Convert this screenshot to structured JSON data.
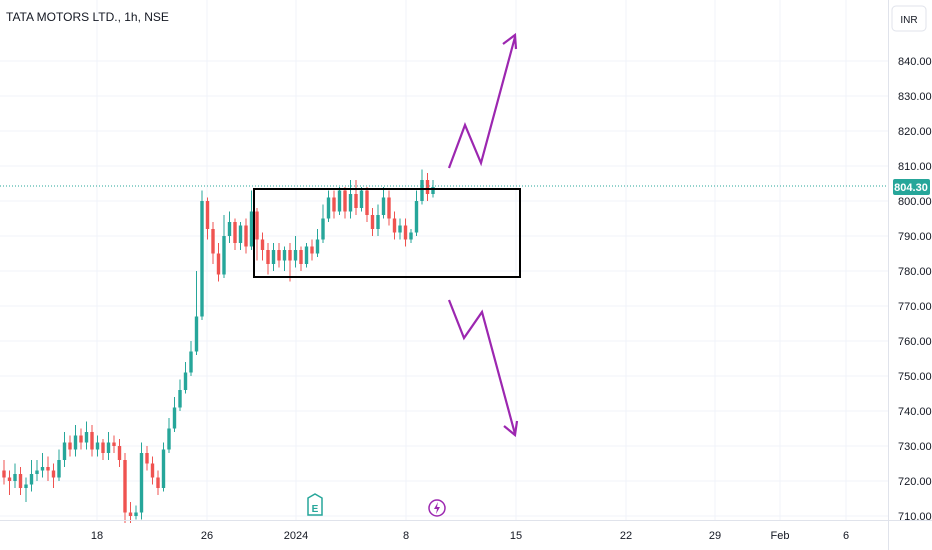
{
  "header": {
    "title": "TATA MOTORS LTD., 1h, NSE"
  },
  "currency": {
    "label": "INR"
  },
  "colors": {
    "up": "#26a69a",
    "down": "#ef5350",
    "annotation": "#9c27b0",
    "box": "#000000",
    "badge": "#26a69a"
  },
  "icons": {
    "earnings": "earnings-icon",
    "dividend": "lightning-icon"
  },
  "markers": {
    "earnings_label": "E"
  },
  "chart_data": {
    "type": "candlestick",
    "title": "TATA MOTORS LTD., 1h, NSE",
    "ylim": [
      710,
      850
    ],
    "y_ticks": [
      "840.00",
      "830.00",
      "820.00",
      "810.00",
      "800.00",
      "790.00",
      "780.00",
      "770.00",
      "760.00",
      "750.00",
      "740.00",
      "730.00",
      "720.00",
      "710.00"
    ],
    "x_ticks": [
      "18",
      "26",
      "2024",
      "8",
      "15",
      "22",
      "29",
      "Feb",
      "6"
    ],
    "last_price": "804.30",
    "candles": [
      [
        723,
        721,
        726,
        719
      ],
      [
        721,
        720,
        723,
        716
      ],
      [
        720,
        722,
        725,
        718
      ],
      [
        722,
        718,
        724,
        716
      ],
      [
        718,
        719,
        721,
        714
      ],
      [
        719,
        722,
        726,
        717
      ],
      [
        722,
        723,
        726,
        720
      ],
      [
        723,
        724,
        728,
        721
      ],
      [
        724,
        723,
        727,
        720
      ],
      [
        723,
        721,
        725,
        718
      ],
      [
        721,
        726,
        729,
        720
      ],
      [
        726,
        731,
        734,
        724
      ],
      [
        731,
        729,
        733,
        727
      ],
      [
        729,
        733,
        736,
        727
      ],
      [
        733,
        731,
        735,
        729
      ],
      [
        731,
        734,
        737,
        729
      ],
      [
        734,
        729,
        736,
        727
      ],
      [
        729,
        731,
        733,
        727
      ],
      [
        731,
        728,
        732,
        726
      ],
      [
        728,
        731,
        734,
        726
      ],
      [
        731,
        730,
        733,
        728
      ],
      [
        730,
        726,
        732,
        724
      ],
      [
        726,
        711,
        728,
        708
      ],
      [
        711,
        710,
        714,
        708
      ],
      [
        710,
        711,
        713,
        709
      ],
      [
        711,
        728,
        731,
        709
      ],
      [
        728,
        725,
        730,
        723
      ],
      [
        725,
        721,
        727,
        719
      ],
      [
        721,
        718,
        723,
        716
      ],
      [
        718,
        729,
        731,
        717
      ],
      [
        729,
        735,
        738,
        728
      ],
      [
        735,
        741,
        744,
        734
      ],
      [
        741,
        746,
        749,
        740
      ],
      [
        746,
        751,
        754,
        745
      ],
      [
        751,
        757,
        760,
        750
      ],
      [
        757,
        767,
        780,
        756
      ],
      [
        767,
        800,
        803,
        766
      ],
      [
        800,
        792,
        801,
        789
      ],
      [
        792,
        785,
        794,
        782
      ],
      [
        785,
        779,
        788,
        777
      ],
      [
        779,
        790,
        796,
        778
      ],
      [
        790,
        794,
        797,
        788
      ],
      [
        794,
        788,
        795,
        786
      ],
      [
        788,
        793,
        794,
        786
      ],
      [
        793,
        787,
        795,
        785
      ],
      [
        787,
        797,
        803,
        786
      ],
      [
        797,
        789,
        798,
        783
      ],
      [
        789,
        786,
        791,
        783
      ],
      [
        786,
        782,
        788,
        779
      ],
      [
        782,
        786,
        788,
        780
      ],
      [
        786,
        783,
        788,
        781
      ],
      [
        783,
        786,
        787,
        780
      ],
      [
        786,
        783,
        788,
        777
      ],
      [
        783,
        786,
        790,
        781
      ],
      [
        786,
        782,
        787,
        780
      ],
      [
        782,
        787,
        788,
        781
      ],
      [
        787,
        785,
        789,
        783
      ],
      [
        785,
        789,
        792,
        784
      ],
      [
        789,
        795,
        799,
        788
      ],
      [
        795,
        801,
        803,
        794
      ],
      [
        801,
        797,
        803,
        795
      ],
      [
        797,
        803,
        804,
        796
      ],
      [
        803,
        797,
        804,
        795
      ],
      [
        797,
        802,
        806,
        795
      ],
      [
        802,
        798,
        806,
        796
      ],
      [
        798,
        803,
        804,
        797
      ],
      [
        803,
        796,
        804,
        794
      ],
      [
        796,
        792,
        798,
        790
      ],
      [
        792,
        796,
        799,
        790
      ],
      [
        796,
        801,
        804,
        795
      ],
      [
        801,
        795,
        803,
        793
      ],
      [
        795,
        791,
        797,
        789
      ],
      [
        791,
        793,
        795,
        789
      ],
      [
        793,
        789,
        795,
        787
      ],
      [
        789,
        791,
        792,
        788
      ],
      [
        791,
        800,
        803,
        790
      ],
      [
        800,
        806,
        809,
        799
      ],
      [
        806,
        802,
        808,
        800
      ],
      [
        802,
        804,
        806,
        801
      ]
    ]
  }
}
